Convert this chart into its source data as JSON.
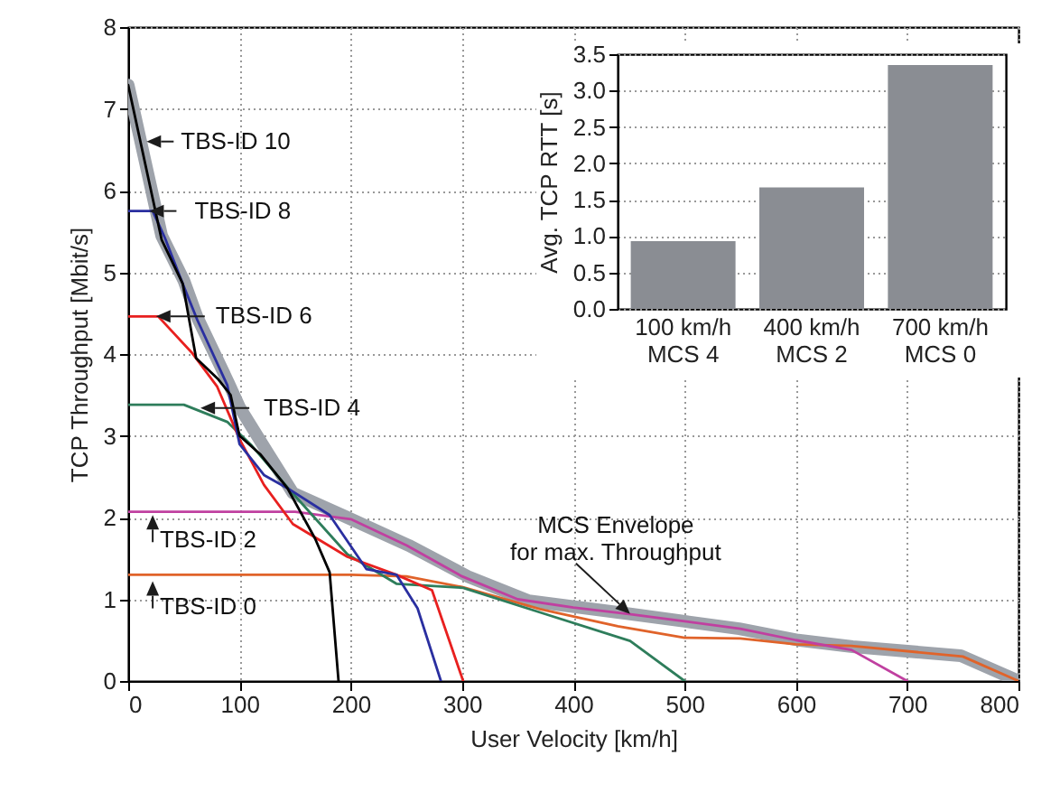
{
  "chart_data": [
    {
      "type": "line",
      "xlabel": "User Velocity [km/h]",
      "ylabel": "TCP Throughput [Mbit/s]",
      "xlim": [
        0,
        800
      ],
      "ylim": [
        0,
        8
      ],
      "xticks": [
        0,
        100,
        200,
        300,
        400,
        500,
        600,
        700,
        800
      ],
      "yticks": [
        0,
        1,
        2,
        3,
        4,
        5,
        6,
        7,
        8
      ],
      "grid": true,
      "series": [
        {
          "color": "#9ea3ab",
          "x": [
            0,
            30,
            50,
            62,
            90,
            100,
            125,
            148,
            197,
            252,
            305,
            360,
            451,
            500,
            549,
            602,
            651,
            748,
            800
          ],
          "values": [
            7.29,
            5.45,
            4.9,
            4.45,
            3.65,
            3.35,
            2.8,
            2.3,
            2.0,
            1.66,
            1.28,
            0.98,
            0.82,
            0.73,
            0.64,
            0.5,
            0.42,
            0.31,
            0
          ]
        },
        {
          "color": "#e0632a",
          "x": [
            0,
            100,
            200,
            250,
            300,
            370,
            440,
            500,
            550,
            600,
            650,
            750,
            800
          ],
          "values": [
            1.3,
            1.3,
            1.3,
            1.28,
            1.15,
            0.88,
            0.67,
            0.53,
            0.52,
            0.45,
            0.43,
            0.3,
            0
          ]
        },
        {
          "color": "#c040a0",
          "x": [
            0,
            150,
            200,
            250,
            300,
            350,
            400,
            450,
            500,
            550,
            600,
            650,
            700
          ],
          "values": [
            2.07,
            2.07,
            1.98,
            1.66,
            1.28,
            1.0,
            0.9,
            0.82,
            0.73,
            0.64,
            0.5,
            0.38,
            0
          ]
        },
        {
          "color": "#2e7d5b",
          "x": [
            0,
            50,
            89,
            111,
            143,
            197,
            241,
            301,
            370,
            451,
            500
          ],
          "values": [
            3.38,
            3.38,
            3.17,
            2.88,
            2.37,
            1.55,
            1.19,
            1.14,
            0.84,
            0.49,
            0
          ]
        },
        {
          "color": "#e8201f",
          "x": [
            0,
            27,
            57,
            80,
            100,
            122,
            148,
            197,
            241,
            273,
            301
          ],
          "values": [
            4.46,
            4.46,
            4.02,
            3.6,
            2.96,
            2.4,
            1.92,
            1.52,
            1.3,
            1.11,
            0
          ]
        },
        {
          "color": "#2a2fa0",
          "x": [
            0,
            22,
            33,
            49,
            62,
            89,
            100,
            122,
            143,
            181,
            214,
            241,
            260,
            281
          ],
          "values": [
            5.75,
            5.75,
            5.42,
            4.86,
            4.42,
            3.62,
            2.9,
            2.52,
            2.36,
            2.03,
            1.37,
            1.3,
            0.89,
            0
          ]
        },
        {
          "color": "#000000",
          "x": [
            0,
            30,
            49,
            61,
            81,
            92,
            100,
            119,
            143,
            168,
            181,
            189
          ],
          "values": [
            7.29,
            5.4,
            4.86,
            3.95,
            3.69,
            3.5,
            3.0,
            2.77,
            2.36,
            1.74,
            1.33,
            0
          ]
        }
      ],
      "annotations": [
        {
          "text": "TBS-ID 10",
          "x": 16.5,
          "y": 6.6
        },
        {
          "text": "TBS-ID 8",
          "x": 19,
          "y": 5.75
        },
        {
          "text": "TBS-ID 6",
          "x": 25,
          "y": 4.46
        },
        {
          "text": "TBS-ID 4",
          "x": 65,
          "y": 3.34
        },
        {
          "text": "TBS-ID 2",
          "x": 22,
          "y": 2.03
        },
        {
          "text": "TBS-ID 0",
          "x": 22,
          "y": 1.22
        },
        {
          "text": "MCS Envelope\nfor max. Throughput",
          "x": 451,
          "y": 0.82
        }
      ]
    },
    {
      "type": "bar",
      "ylabel": "Avg. TCP RTT [s]",
      "categories": [
        "100 km/h\nMCS 4",
        "400 km/h\nMCS 2",
        "700 km/h\nMCS 0"
      ],
      "values": [
        0.93,
        1.67,
        3.35
      ],
      "color": "#8a8d93",
      "ylim": [
        0,
        3.5
      ],
      "yticks": [
        {
          "value": 0,
          "label": "0.0"
        },
        0.5,
        {
          "value": 1,
          "label": "1.0"
        },
        1.5,
        {
          "value": 2,
          "label": "2.0"
        },
        2.5,
        {
          "value": 3,
          "label": "3.0"
        },
        3.5
      ],
      "grid": "y"
    }
  ]
}
